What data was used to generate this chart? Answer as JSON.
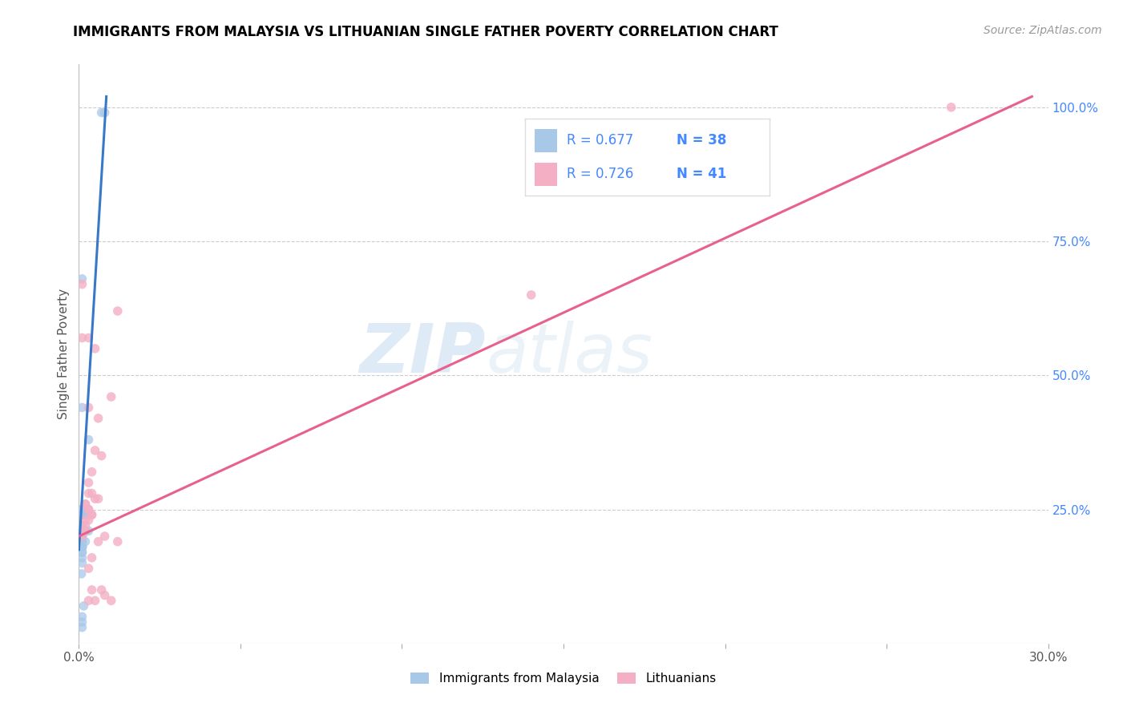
{
  "title": "IMMIGRANTS FROM MALAYSIA VS LITHUANIAN SINGLE FATHER POVERTY CORRELATION CHART",
  "source": "Source: ZipAtlas.com",
  "ylabel": "Single Father Poverty",
  "xlim": [
    0.0,
    0.3
  ],
  "ylim": [
    0.0,
    1.08
  ],
  "xticks": [
    0.0,
    0.05,
    0.1,
    0.15,
    0.2,
    0.25,
    0.3
  ],
  "xtick_labels": [
    "0.0%",
    "",
    "",
    "",
    "",
    "",
    "30.0%"
  ],
  "ytick_labels_right": [
    "100.0%",
    "75.0%",
    "50.0%",
    "25.0%"
  ],
  "ytick_vals_right": [
    1.0,
    0.75,
    0.5,
    0.25
  ],
  "legend_r1": "0.677",
  "legend_n1": "38",
  "legend_r2": "0.726",
  "legend_n2": "41",
  "legend_label1": "Immigrants from Malaysia",
  "legend_label2": "Lithuanians",
  "color_blue": "#a8c8e8",
  "color_pink": "#f4afc4",
  "color_blue_line": "#3878c8",
  "color_pink_line": "#e8608c",
  "watermark_zip": "ZIP",
  "watermark_atlas": "atlas",
  "blue_scatter_x": [
    0.0015,
    0.0008,
    0.007,
    0.008,
    0.001,
    0.001,
    0.001,
    0.002,
    0.003,
    0.001,
    0.001,
    0.002,
    0.001,
    0.001,
    0.001,
    0.002,
    0.002,
    0.003,
    0.001,
    0.001,
    0.001,
    0.001,
    0.001,
    0.002,
    0.001,
    0.001,
    0.001,
    0.001,
    0.001,
    0.001,
    0.001,
    0.001,
    0.001,
    0.001,
    0.001,
    0.001,
    0.001,
    0.001
  ],
  "blue_scatter_y": [
    0.07,
    0.13,
    0.99,
    0.99,
    0.68,
    0.44,
    0.25,
    0.24,
    0.38,
    0.25,
    0.24,
    0.24,
    0.22,
    0.22,
    0.22,
    0.21,
    0.21,
    0.21,
    0.2,
    0.2,
    0.2,
    0.19,
    0.19,
    0.19,
    0.18,
    0.18,
    0.18,
    0.18,
    0.17,
    0.17,
    0.16,
    0.15,
    0.05,
    0.04,
    0.03,
    0.22,
    0.21,
    0.21
  ],
  "pink_scatter_x": [
    0.001,
    0.012,
    0.001,
    0.003,
    0.005,
    0.01,
    0.003,
    0.006,
    0.005,
    0.007,
    0.004,
    0.003,
    0.003,
    0.004,
    0.005,
    0.006,
    0.002,
    0.002,
    0.003,
    0.003,
    0.004,
    0.004,
    0.003,
    0.002,
    0.002,
    0.002,
    0.001,
    0.001,
    0.008,
    0.006,
    0.012,
    0.004,
    0.003,
    0.004,
    0.007,
    0.008,
    0.01,
    0.005,
    0.003,
    0.14,
    0.27
  ],
  "pink_scatter_y": [
    0.67,
    0.62,
    0.57,
    0.57,
    0.55,
    0.46,
    0.44,
    0.42,
    0.36,
    0.35,
    0.32,
    0.3,
    0.28,
    0.28,
    0.27,
    0.27,
    0.26,
    0.26,
    0.25,
    0.25,
    0.24,
    0.24,
    0.23,
    0.23,
    0.22,
    0.21,
    0.21,
    0.2,
    0.2,
    0.19,
    0.19,
    0.16,
    0.14,
    0.1,
    0.1,
    0.09,
    0.08,
    0.08,
    0.08,
    0.65,
    1.0
  ],
  "blue_line_x": [
    0.0,
    0.0085
  ],
  "blue_line_y": [
    0.175,
    1.02
  ],
  "pink_line_x": [
    0.0,
    0.295
  ],
  "pink_line_y": [
    0.2,
    1.02
  ],
  "title_fontsize": 12,
  "source_fontsize": 10,
  "axis_label_color": "#555555",
  "grid_color": "#cccccc",
  "right_tick_color": "#4488ff"
}
